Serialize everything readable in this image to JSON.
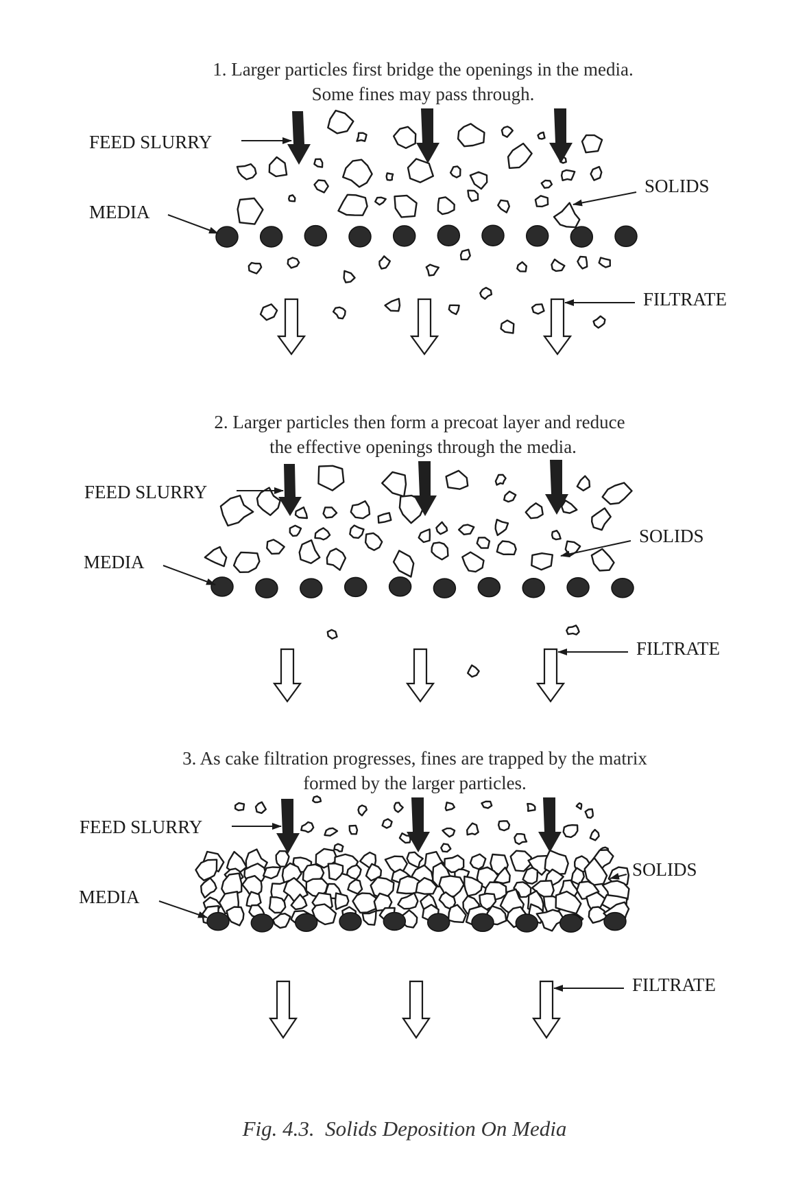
{
  "panels": [
    {
      "caption_line1": "1. Larger particles first bridge the openings in the media.",
      "caption_line2": "Some fines may pass through.",
      "labels": {
        "feed": "FEED SLURRY",
        "media": "MEDIA",
        "solids": "SOLIDS",
        "filtrate": "FILTRATE"
      }
    },
    {
      "caption_line1": "2. Larger particles then form a precoat layer and reduce",
      "caption_line2": "the effective openings through the media.",
      "labels": {
        "feed": "FEED SLURRY",
        "media": "MEDIA",
        "solids": "SOLIDS",
        "filtrate": "FILTRATE"
      }
    },
    {
      "caption_line1": "3. As cake filtration progresses, fines are trapped by the matrix",
      "caption_line2": "formed by the larger particles.",
      "labels": {
        "feed": "FEED SLURRY",
        "media": "MEDIA",
        "solids": "SOLIDS",
        "filtrate": "FILTRATE"
      }
    }
  ],
  "figure_caption": "Fig. 4.3.  Solids Deposition On Media"
}
